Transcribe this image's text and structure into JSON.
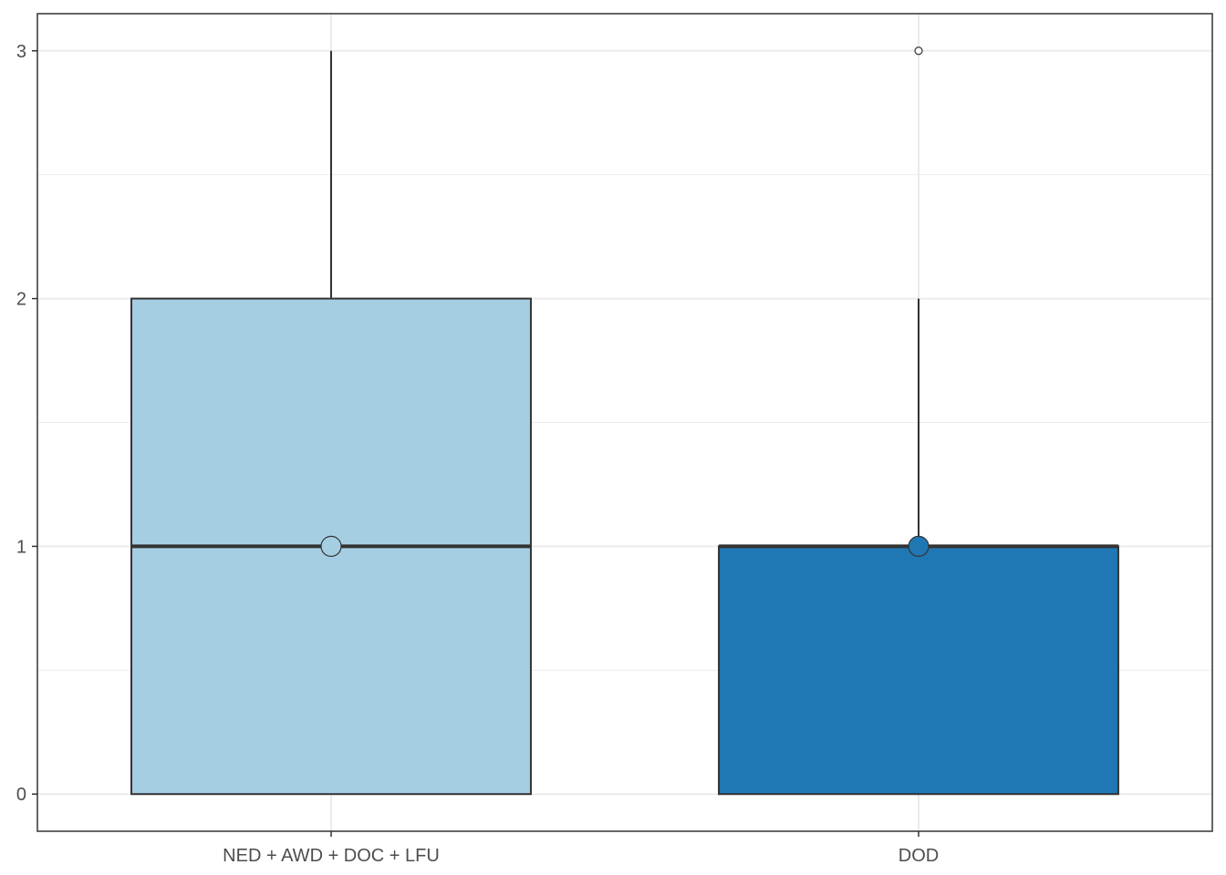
{
  "chart_data": {
    "type": "boxplot",
    "title": "",
    "xlabel": "",
    "ylabel": "",
    "categories": [
      "NED + AWD + DOC + LFU",
      "DOD"
    ],
    "boxes": [
      {
        "category": "NED + AWD + DOC + LFU",
        "min": 0,
        "q1": 0,
        "median": 1,
        "q3": 2,
        "max": 3,
        "mean": 1,
        "outliers": [],
        "color": "#a6cee3"
      },
      {
        "category": "DOD",
        "min": 0,
        "q1": 0,
        "median": 1,
        "q3": 1,
        "max": 2,
        "mean": 1,
        "outliers": [
          3
        ],
        "color": "#1f78b4"
      }
    ],
    "yticks": [
      0,
      1,
      2,
      3
    ],
    "ylim": [
      -0.15,
      3.15
    ],
    "grid": true,
    "legend": "none"
  }
}
